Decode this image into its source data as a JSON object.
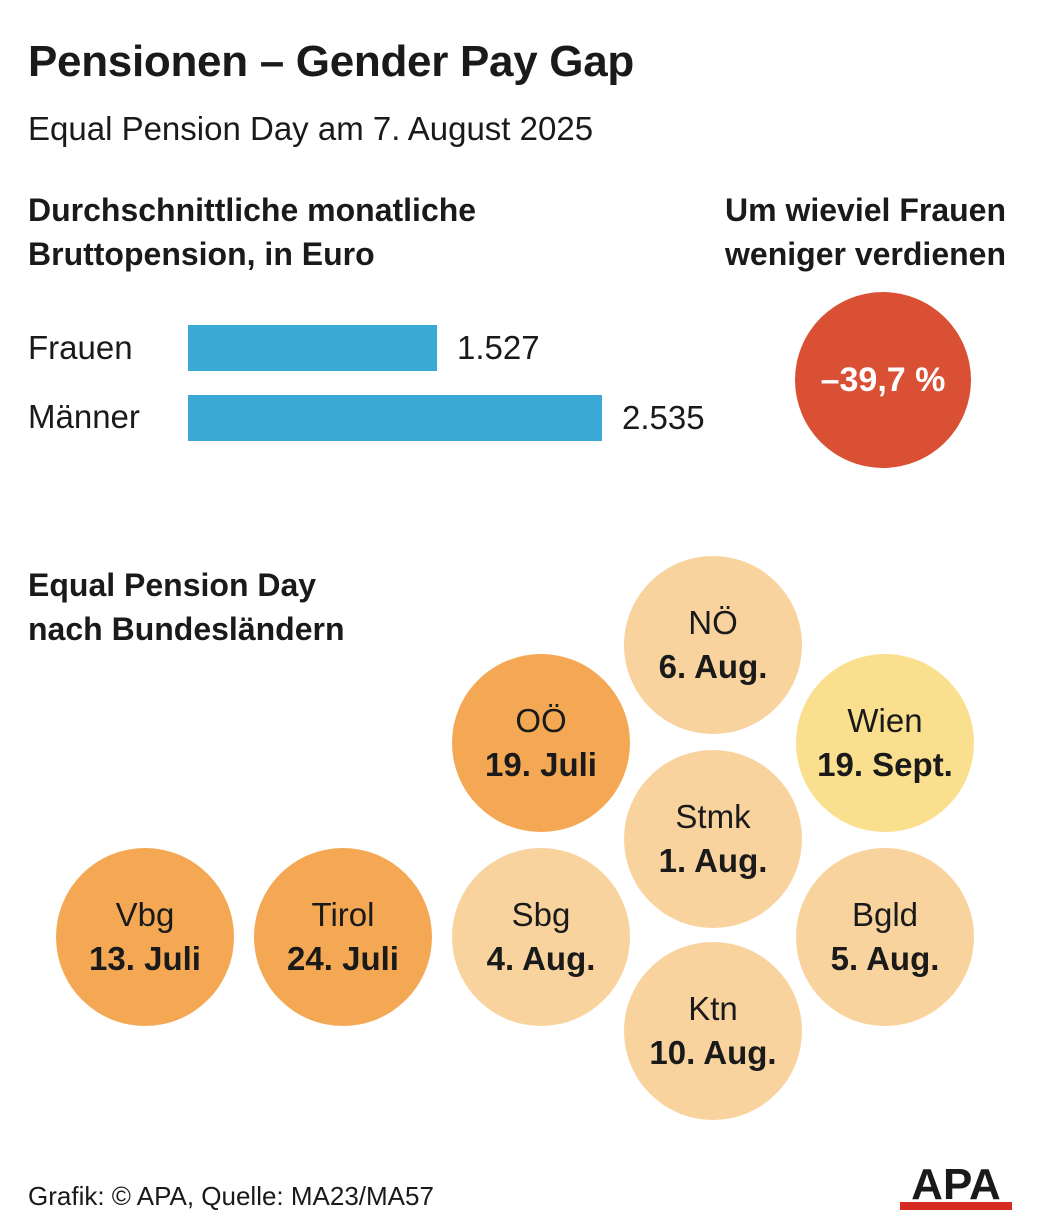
{
  "title": "Pensionen – Gender Pay Gap",
  "subtitle": "Equal Pension Day am 7. August 2025",
  "bar_section": {
    "title_line1": "Durchschnittliche monatliche",
    "title_line2": "Bruttopension, in Euro"
  },
  "gap_section": {
    "title_line1": "Um wieviel Frauen",
    "title_line2": "weniger verdienen",
    "value_label": "–39,7 %",
    "value": -39.7,
    "color": "#d95035"
  },
  "chart_data": [
    {
      "type": "bar",
      "orientation": "horizontal",
      "categories": [
        "Frauen",
        "Männer"
      ],
      "values": [
        1527,
        2535
      ],
      "value_labels": [
        "1.527",
        "2.535"
      ],
      "color": "#3aa9d6"
    }
  ],
  "states_section": {
    "title_line1": "Equal Pension Day",
    "title_line2": "nach Bundesländern",
    "items": [
      {
        "name": "NÖ",
        "date": "6. Aug.",
        "color": "#f9d39e"
      },
      {
        "name": "OÖ",
        "date": "19. Juli",
        "color": "#f4a854"
      },
      {
        "name": "Wien",
        "date": "19. Sept.",
        "color": "#fae08e"
      },
      {
        "name": "Stmk",
        "date": "1. Aug.",
        "color": "#f9d39e"
      },
      {
        "name": "Vbg",
        "date": "13. Juli",
        "color": "#f4a854"
      },
      {
        "name": "Tirol",
        "date": "24. Juli",
        "color": "#f4a854"
      },
      {
        "name": "Sbg",
        "date": "4. Aug.",
        "color": "#f9d39e"
      },
      {
        "name": "Bgld",
        "date": "5. Aug.",
        "color": "#f9d39e"
      },
      {
        "name": "Ktn",
        "date": "10. Aug.",
        "color": "#f9d39e"
      }
    ]
  },
  "footer": "Grafik: © APA, Quelle: MA23/MA57",
  "logo_text": "APA"
}
